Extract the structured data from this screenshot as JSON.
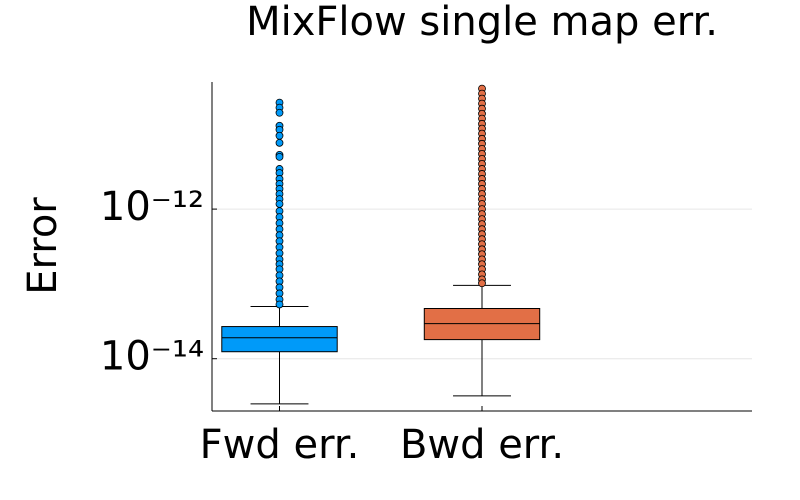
{
  "chart_data": {
    "type": "box",
    "title": "MixFlow single map err.",
    "y_label": "Error",
    "categories": [
      "Fwd err.",
      "Bwd err."
    ],
    "colors": [
      "#009af9",
      "#e26f46"
    ],
    "log_y": true,
    "grid": true,
    "ylim": [
      2e-15,
      5e-11
    ],
    "yticks": [
      {
        "value": 1e-12,
        "label": "10⁻¹²"
      },
      {
        "value": 1e-14,
        "label": "10⁻¹⁴"
      }
    ],
    "boxes": [
      {
        "min": 2.49e-15,
        "q1": 1.24e-14,
        "median": 1.91e-14,
        "q3": 2.69e-14,
        "max": 4.99e-14,
        "outliers": [
          2.65e-11,
          2.27e-11,
          1.94e-11,
          1.3e-11,
          1.15e-11,
          9.55e-12,
          7.69e-12,
          5.31e-12,
          4.99e-12,
          3.44e-12,
          3.04e-12,
          2.53e-12,
          2.17e-12,
          1.86e-12,
          1.59e-12,
          1.36e-12,
          1.17e-12,
          9.4e-13,
          7.81e-13,
          6.49e-13,
          5.39e-13,
          4.48e-13,
          3.72e-13,
          3.09e-13,
          2.57e-13,
          2.13e-13,
          1.83e-13,
          1.57e-13,
          1.3e-13,
          1.08e-13,
          8.97e-14,
          7.46e-14,
          6.19e-14,
          5.31e-14
        ]
      },
      {
        "min": 3.18e-15,
        "q1": 1.8e-14,
        "median": 2.95e-14,
        "q3": 4.69e-14,
        "max": 9.55e-14,
        "outliers": [
          4.08e-11,
          3.5e-11,
          3e-11,
          2.57e-11,
          2.2e-11,
          1.88e-11,
          1.62e-11,
          1.38e-11,
          1.19e-11,
          1.02e-11,
          8.7e-12,
          7.46e-12,
          6.39e-12,
          5.47e-12,
          4.69e-12,
          4.02e-12,
          3.44e-12,
          2.95e-12,
          2.53e-12,
          2.17e-12,
          1.86e-12,
          1.59e-12,
          1.36e-12,
          1.17e-12,
          1e-12,
          8.57e-13,
          7.34e-13,
          6.29e-13,
          5.39e-13,
          4.62e-13,
          3.96e-13,
          3.39e-13,
          2.9e-13,
          2.49e-13,
          2.13e-13,
          1.83e-13,
          1.57e-13,
          1.34e-13,
          1.15e-13,
          1.02e-13
        ]
      }
    ]
  }
}
